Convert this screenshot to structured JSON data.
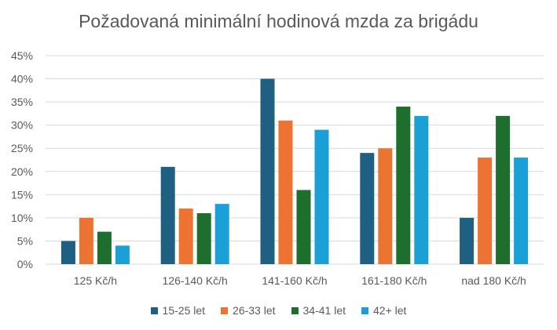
{
  "chart_data": {
    "type": "bar",
    "title": "Požadovaná minimální hodinová mzda za brigádu",
    "categories": [
      "125 Kč/h",
      "126-140 Kč/h",
      "141-160 Kč/h",
      "161-180 Kč/h",
      "nad 180 Kč/h"
    ],
    "series": [
      {
        "name": "15-25 let",
        "color": "#1f5f82",
        "values": [
          5,
          21,
          40,
          24,
          10
        ]
      },
      {
        "name": "26-33 let",
        "color": "#ec7332",
        "values": [
          10,
          12,
          31,
          25,
          23
        ]
      },
      {
        "name": "34-41 let",
        "color": "#1e6f2e",
        "values": [
          7,
          11,
          16,
          34,
          32
        ]
      },
      {
        "name": "42+ let",
        "color": "#1a9fd6",
        "values": [
          4,
          13,
          29,
          32,
          23
        ]
      }
    ],
    "ylim": [
      0,
      45
    ],
    "yticks": [
      "0%",
      "5%",
      "10%",
      "15%",
      "20%",
      "25%",
      "30%",
      "35%",
      "40%",
      "45%"
    ],
    "ytick_values": [
      0,
      5,
      10,
      15,
      20,
      25,
      30,
      35,
      40,
      45
    ],
    "grid": true,
    "legend_position": "bottom"
  }
}
